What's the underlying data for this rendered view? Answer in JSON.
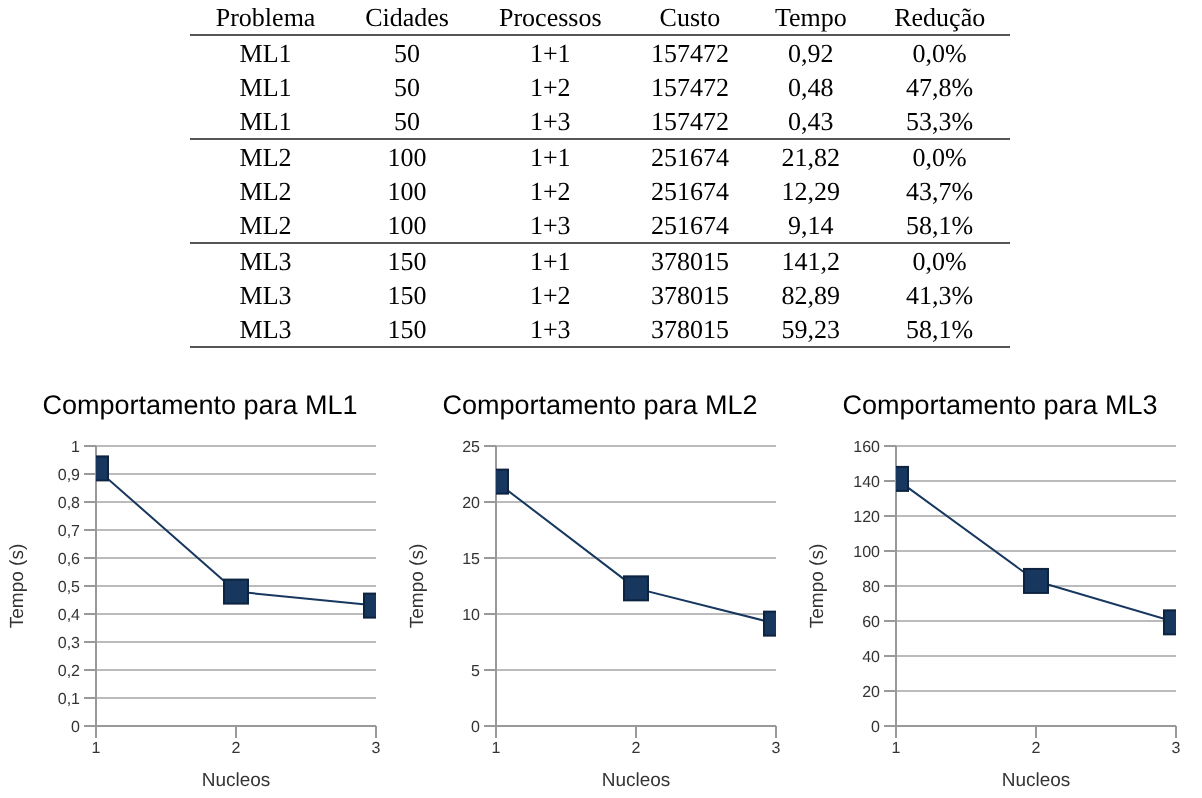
{
  "chart_data": [
    {
      "type": "other",
      "categories": [
        "Problema",
        "Cidades",
        "Processos",
        "Custo",
        "Tempo",
        "Redução"
      ],
      "cell_labels": [
        [
          "ML1",
          "50",
          "1+1",
          "157472",
          "0,92",
          "0,0%"
        ],
        [
          "ML1",
          "50",
          "1+2",
          "157472",
          "0,48",
          "47,8%"
        ],
        [
          "ML1",
          "50",
          "1+3",
          "157472",
          "0,43",
          "53,3%"
        ],
        [
          "ML2",
          "100",
          "1+1",
          "251674",
          "21,82",
          "0,0%"
        ],
        [
          "ML2",
          "100",
          "1+2",
          "251674",
          "12,29",
          "43,7%"
        ],
        [
          "ML2",
          "100",
          "1+3",
          "251674",
          "9,14",
          "58,1%"
        ],
        [
          "ML3",
          "150",
          "1+1",
          "378015",
          "141,2",
          "0,0%"
        ],
        [
          "ML3",
          "150",
          "1+2",
          "378015",
          "82,89",
          "41,3%"
        ],
        [
          "ML3",
          "150",
          "1+3",
          "378015",
          "59,23",
          "58,1%"
        ]
      ]
    },
    {
      "type": "line",
      "title": "Comportamento para ML1",
      "xlabel": "Nucleos",
      "ylabel": "Tempo (s)",
      "x": [
        1,
        2,
        3
      ],
      "series": [
        {
          "color": "#17375e",
          "values": [
            0.92,
            0.48,
            0.43
          ]
        }
      ],
      "xlim": [
        1,
        3
      ],
      "xticks": [
        1,
        2,
        3
      ],
      "ylim": [
        0,
        1
      ],
      "yticks": [
        0,
        {
          "value": 0.1,
          "label": "0,1"
        },
        {
          "value": 0.2,
          "label": "0,2"
        },
        {
          "value": 0.3,
          "label": "0,3"
        },
        {
          "value": 0.4,
          "label": "0,4"
        },
        {
          "value": 0.5,
          "label": "0,5"
        },
        {
          "value": 0.6,
          "label": "0,6"
        },
        {
          "value": 0.7,
          "label": "0,7"
        },
        {
          "value": 0.8,
          "label": "0,8"
        },
        {
          "value": 0.9,
          "label": "0,9"
        },
        1
      ],
      "grid": "y",
      "marker": "square",
      "line_style": "solid",
      "legend": false
    },
    {
      "type": "line",
      "title": "Comportamento para ML2",
      "xlabel": "Nucleos",
      "ylabel": "Tempo (s)",
      "x": [
        1,
        2,
        3
      ],
      "series": [
        {
          "color": "#17375e",
          "values": [
            21.82,
            12.29,
            9.14
          ]
        }
      ],
      "xlim": [
        1,
        3
      ],
      "xticks": [
        1,
        2,
        3
      ],
      "ylim": [
        0,
        25
      ],
      "yticks": [
        0,
        5,
        10,
        15,
        20,
        25
      ],
      "grid": "y",
      "marker": "square",
      "line_style": "solid",
      "legend": false
    },
    {
      "type": "line",
      "title": "Comportamento para ML3",
      "xlabel": "Nucleos",
      "ylabel": "Tempo (s)",
      "x": [
        1,
        2,
        3
      ],
      "series": [
        {
          "color": "#17375e",
          "values": [
            141.2,
            82.89,
            59.23
          ]
        }
      ],
      "xlim": [
        1,
        3
      ],
      "xticks": [
        1,
        2,
        3
      ],
      "ylim": [
        0,
        160
      ],
      "yticks": [
        0,
        20,
        40,
        60,
        80,
        100,
        120,
        140,
        160
      ],
      "grid": "y",
      "marker": "square",
      "line_style": "solid",
      "legend": false
    }
  ]
}
